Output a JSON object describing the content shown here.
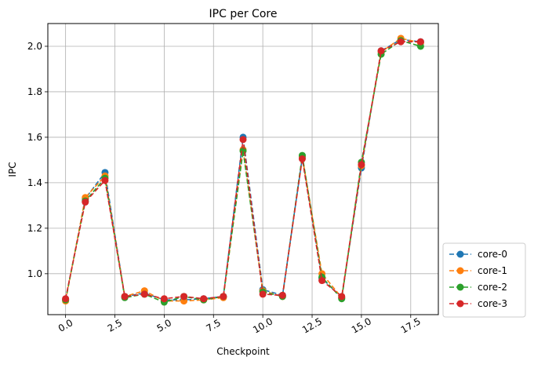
{
  "chart_data": {
    "type": "line",
    "title": "IPC per Core",
    "xlabel": "Checkpoint",
    "ylabel": "IPC",
    "xlim": [
      -0.9,
      18.9
    ],
    "ylim": [
      0.82,
      2.1
    ],
    "xticks": [
      0.0,
      2.5,
      5.0,
      7.5,
      10.0,
      12.5,
      15.0,
      17.5
    ],
    "xtick_labels": [
      "0.0",
      "2.5",
      "5.0",
      "7.5",
      "10.0",
      "12.5",
      "15.0",
      "17.5"
    ],
    "yticks": [
      1.0,
      1.2,
      1.4,
      1.6,
      1.8,
      2.0
    ],
    "ytick_labels": [
      "1.0",
      "1.2",
      "1.4",
      "1.6",
      "1.8",
      "2.0"
    ],
    "grid": true,
    "legend_position": "outside-bottom-right",
    "line_style": "dashed",
    "marker": "circle",
    "x": [
      0,
      1,
      2,
      3,
      4,
      5,
      6,
      7,
      8,
      9,
      10,
      11,
      12,
      13,
      14,
      15,
      16,
      17,
      18
    ],
    "series": [
      {
        "name": "core-0",
        "color": "#1f77b4",
        "values": [
          0.885,
          1.33,
          1.445,
          0.9,
          0.915,
          0.885,
          0.885,
          0.89,
          0.9,
          1.6,
          0.93,
          0.905,
          1.51,
          0.98,
          0.895,
          1.465,
          1.98,
          2.03,
          2.02
        ]
      },
      {
        "name": "core-1",
        "color": "#ff7f0e",
        "values": [
          0.88,
          1.335,
          1.43,
          0.9,
          0.925,
          0.88,
          0.88,
          0.885,
          0.895,
          1.545,
          0.925,
          0.9,
          1.515,
          1.0,
          0.895,
          1.475,
          1.975,
          2.035,
          2.015
        ]
      },
      {
        "name": "core-2",
        "color": "#2ca02c",
        "values": [
          0.885,
          1.32,
          1.42,
          0.895,
          0.91,
          0.875,
          0.9,
          0.885,
          0.9,
          1.54,
          0.92,
          0.9,
          1.52,
          0.985,
          0.89,
          1.49,
          1.965,
          2.025,
          2.0
        ]
      },
      {
        "name": "core-3",
        "color": "#d62728",
        "values": [
          0.89,
          1.315,
          1.41,
          0.9,
          0.91,
          0.89,
          0.9,
          0.89,
          0.9,
          1.59,
          0.91,
          0.905,
          1.505,
          0.97,
          0.9,
          1.48,
          1.98,
          2.02,
          2.02
        ]
      }
    ]
  }
}
